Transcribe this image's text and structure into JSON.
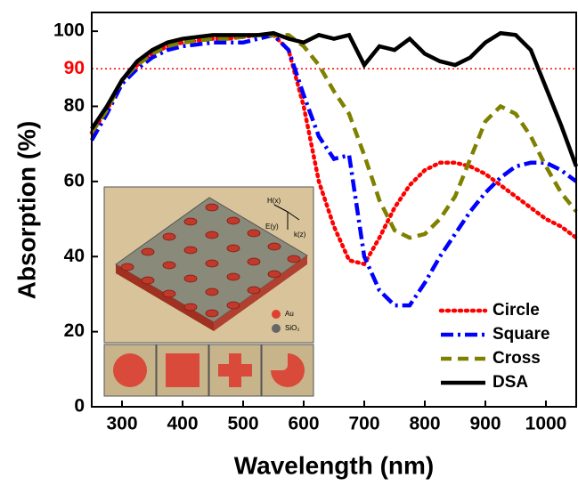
{
  "chart_data": {
    "type": "line",
    "x_label": "Wavelength (nm)",
    "y_label": "Absorption (%)",
    "x": [
      250,
      275,
      300,
      325,
      350,
      375,
      400,
      425,
      450,
      475,
      500,
      525,
      550,
      575,
      600,
      625,
      650,
      675,
      700,
      725,
      750,
      775,
      800,
      825,
      850,
      875,
      900,
      925,
      950,
      975,
      1000,
      1025,
      1050
    ],
    "series": [
      {
        "name": "Circle",
        "color": "#ff0000",
        "linestyle": "dotted",
        "values": [
          73,
          79,
          87,
          91,
          94,
          96,
          97,
          97.5,
          98,
          98,
          98.5,
          99,
          99,
          95,
          80,
          60,
          48,
          39,
          38,
          45,
          53,
          59,
          63,
          65,
          65,
          64,
          62,
          59,
          56,
          53,
          50,
          48,
          45
        ]
      },
      {
        "name": "Square",
        "color": "#0000ff",
        "linestyle": "dashdot",
        "values": [
          71,
          78,
          86,
          90,
          93,
          95,
          96,
          96.5,
          97,
          97,
          97,
          98,
          99,
          95,
          83,
          72,
          66,
          67,
          40,
          31,
          27,
          27,
          33,
          40,
          46,
          52,
          57,
          61,
          64,
          65,
          65,
          63,
          60
        ]
      },
      {
        "name": "Cross",
        "color": "#808000",
        "linestyle": "dashed",
        "values": [
          73,
          79,
          87,
          91,
          94,
          96,
          97,
          97.5,
          98,
          98,
          98.5,
          99,
          99,
          99,
          96,
          91,
          84,
          78,
          67,
          55,
          47,
          45,
          46,
          50,
          56,
          66,
          76,
          80,
          78,
          72,
          64,
          57,
          52
        ]
      },
      {
        "name": "DSA",
        "color": "#000000",
        "linestyle": "solid",
        "values": [
          74,
          80,
          87,
          92,
          95,
          97,
          98,
          98.5,
          99,
          99,
          99,
          99,
          99.5,
          98,
          97,
          99,
          98,
          99,
          91,
          96,
          95,
          98,
          94,
          92,
          91,
          93,
          97,
          99.5,
          99,
          95,
          85,
          75,
          64
        ]
      }
    ],
    "xlim": [
      250,
      1050
    ],
    "xticks": [
      300,
      400,
      500,
      600,
      700,
      800,
      900,
      1000
    ],
    "ylim": [
      0,
      105
    ],
    "yticks": [
      0,
      20,
      40,
      60,
      80,
      100
    ],
    "hline": {
      "value": 90,
      "color": "#ff0000"
    },
    "legend": "lower-right",
    "inset": {
      "labels": [
        "H(x)",
        "E(y)",
        "k(z)",
        "Au",
        "SiO₂"
      ]
    }
  }
}
